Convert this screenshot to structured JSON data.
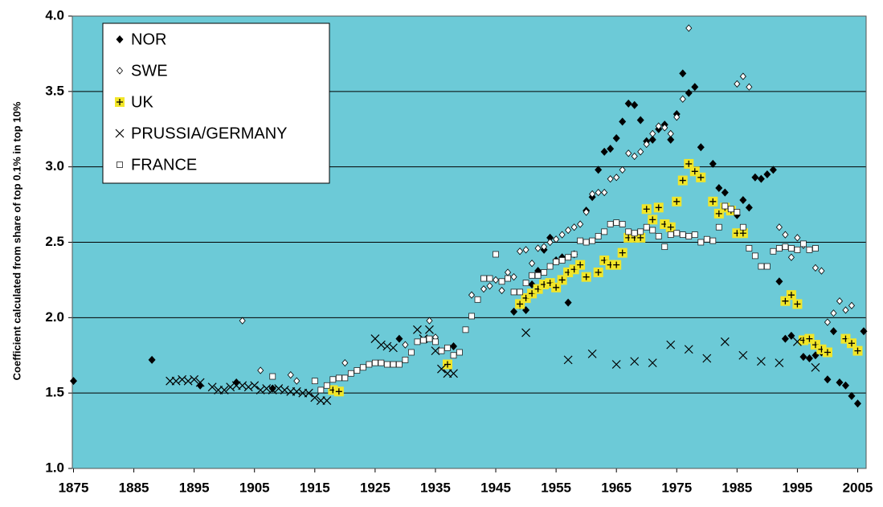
{
  "chart_data": {
    "type": "scatter",
    "ylabel": "Coefficient calculated from share of top 0.1% in top 10%",
    "xlim": [
      1874.8,
      2006.4
    ],
    "ylim": [
      1.0,
      4.0
    ],
    "xticks": [
      1875,
      1885,
      1895,
      1905,
      1915,
      1925,
      1935,
      1945,
      1955,
      1965,
      1975,
      1985,
      1995,
      2005
    ],
    "yticks": [
      {
        "value": 1,
        "label": "1.0"
      },
      {
        "value": 1.5,
        "label": "1.5"
      },
      {
        "value": 2,
        "label": "2.0"
      },
      {
        "value": 2.5,
        "label": "2.5"
      },
      {
        "value": 3,
        "label": "3.0"
      },
      {
        "value": 3.5,
        "label": "3.5"
      },
      {
        "value": 4,
        "label": "4.0"
      }
    ],
    "grid": true,
    "legend": "upper-left",
    "background": "#6ccad7",
    "series": [
      {
        "name": "NOR",
        "marker": "diamond",
        "color": "#000000",
        "x": [
          1875,
          1888,
          1896,
          1902,
          1908,
          1929,
          1938,
          1948,
          1949,
          1950,
          1951,
          1952,
          1953,
          1954,
          1955,
          1956,
          1957,
          1958,
          1960,
          1961,
          1962,
          1963,
          1964,
          1965,
          1966,
          1967,
          1968,
          1969,
          1970,
          1971,
          1972,
          1973,
          1974,
          1975,
          1976,
          1977,
          1978,
          1979,
          1981,
          1982,
          1983,
          1985,
          1986,
          1987,
          1988,
          1989,
          1990,
          1991,
          1992,
          1993,
          1994,
          1996,
          1997,
          1998,
          1999,
          2000,
          2001,
          2002,
          2003,
          2004,
          2005,
          2006
        ],
        "values": [
          1.58,
          1.72,
          1.55,
          1.57,
          1.53,
          1.86,
          1.81,
          2.04,
          2.08,
          2.05,
          2.22,
          2.31,
          2.45,
          2.53,
          2.38,
          2.4,
          2.1,
          2.42,
          2.71,
          2.8,
          2.98,
          3.1,
          3.12,
          3.19,
          3.3,
          3.42,
          3.41,
          3.31,
          3.17,
          3.18,
          3.25,
          3.28,
          3.18,
          3.35,
          3.62,
          3.49,
          3.53,
          3.13,
          3.02,
          2.86,
          2.83,
          2.68,
          2.78,
          2.73,
          2.93,
          2.92,
          2.95,
          2.98,
          2.24,
          1.86,
          1.88,
          1.74,
          1.73,
          1.75,
          1.77,
          1.59,
          1.91,
          1.57,
          1.55,
          1.48,
          1.43,
          1.91
        ]
      },
      {
        "name": "SWE",
        "marker": "open-diamond",
        "color": "#000000",
        "x": [
          1903,
          1906,
          1911,
          1912,
          1920,
          1930,
          1934,
          1935,
          1941,
          1943,
          1944,
          1945,
          1946,
          1947,
          1948,
          1949,
          1950,
          1951,
          1952,
          1953,
          1954,
          1955,
          1956,
          1957,
          1958,
          1959,
          1960,
          1961,
          1962,
          1963,
          1964,
          1965,
          1966,
          1967,
          1968,
          1969,
          1970,
          1971,
          1972,
          1973,
          1974,
          1975,
          1976,
          1977,
          1985,
          1986,
          1987,
          1992,
          1993,
          1994,
          1995,
          1996,
          1998,
          1999,
          2000,
          2001,
          2002,
          2003,
          2004
        ],
        "values": [
          1.98,
          1.65,
          1.62,
          1.58,
          1.7,
          1.82,
          1.98,
          1.87,
          2.15,
          2.19,
          2.21,
          2.25,
          2.18,
          2.3,
          2.27,
          2.44,
          2.45,
          2.36,
          2.46,
          2.47,
          2.5,
          2.52,
          2.55,
          2.58,
          2.6,
          2.62,
          2.7,
          2.82,
          2.83,
          2.83,
          2.92,
          2.93,
          2.98,
          3.09,
          3.07,
          3.1,
          3.15,
          3.22,
          3.27,
          3.26,
          3.22,
          3.33,
          3.45,
          3.92,
          3.55,
          3.6,
          3.53,
          2.6,
          2.55,
          2.4,
          2.53,
          2.48,
          2.33,
          2.31,
          1.97,
          2.03,
          2.11,
          2.05,
          2.08
        ]
      },
      {
        "name": "UK",
        "marker": "plus-square",
        "color": "#f2e628",
        "x": [
          1918,
          1919,
          1937,
          1949,
          1950,
          1951,
          1952,
          1953,
          1954,
          1955,
          1956,
          1957,
          1958,
          1959,
          1960,
          1962,
          1963,
          1964,
          1965,
          1966,
          1967,
          1968,
          1969,
          1970,
          1971,
          1972,
          1973,
          1974,
          1975,
          1976,
          1977,
          1978,
          1979,
          1981,
          1982,
          1983,
          1984,
          1985,
          1986,
          1993,
          1994,
          1995,
          1996,
          1997,
          1998,
          1999,
          2000,
          2003,
          2004,
          2005
        ],
        "values": [
          1.52,
          1.51,
          1.69,
          2.09,
          2.13,
          2.16,
          2.19,
          2.22,
          2.23,
          2.2,
          2.25,
          2.3,
          2.32,
          2.35,
          2.27,
          2.3,
          2.38,
          2.35,
          2.35,
          2.43,
          2.53,
          2.53,
          2.53,
          2.72,
          2.65,
          2.73,
          2.62,
          2.6,
          2.77,
          2.91,
          3.02,
          2.97,
          2.93,
          2.77,
          2.69,
          2.73,
          2.71,
          2.56,
          2.56,
          2.11,
          2.15,
          2.09,
          1.85,
          1.86,
          1.82,
          1.79,
          1.77,
          1.86,
          1.83,
          1.78
        ]
      },
      {
        "name": "PRUSSIA/GERMANY",
        "marker": "cross",
        "color": "#000000",
        "x": [
          1891,
          1892,
          1893,
          1894,
          1895,
          1896,
          1898,
          1899,
          1900,
          1901,
          1902,
          1903,
          1904,
          1905,
          1906,
          1907,
          1908,
          1909,
          1910,
          1911,
          1912,
          1913,
          1914,
          1915,
          1916,
          1917,
          1925,
          1926,
          1927,
          1928,
          1932,
          1933,
          1934,
          1935,
          1936,
          1937,
          1938,
          1950,
          1957,
          1961,
          1965,
          1968,
          1971,
          1974,
          1977,
          1980,
          1983,
          1986,
          1989,
          1992,
          1995,
          1998
        ],
        "values": [
          1.58,
          1.58,
          1.59,
          1.58,
          1.59,
          1.57,
          1.54,
          1.52,
          1.52,
          1.54,
          1.55,
          1.55,
          1.54,
          1.55,
          1.52,
          1.53,
          1.52,
          1.53,
          1.52,
          1.51,
          1.51,
          1.5,
          1.5,
          1.47,
          1.45,
          1.45,
          1.86,
          1.82,
          1.81,
          1.8,
          1.92,
          1.86,
          1.92,
          1.78,
          1.66,
          1.63,
          1.63,
          1.9,
          1.72,
          1.76,
          1.69,
          1.71,
          1.7,
          1.82,
          1.79,
          1.73,
          1.84,
          1.75,
          1.71,
          1.7,
          1.84,
          1.67
        ]
      },
      {
        "name": "FRANCE",
        "marker": "open-square",
        "color": "#000000",
        "x": [
          1908,
          1915,
          1916,
          1917,
          1918,
          1919,
          1920,
          1921,
          1922,
          1923,
          1924,
          1925,
          1926,
          1927,
          1928,
          1929,
          1930,
          1931,
          1932,
          1933,
          1934,
          1935,
          1936,
          1937,
          1938,
          1939,
          1940,
          1941,
          1942,
          1943,
          1944,
          1945,
          1946,
          1947,
          1948,
          1949,
          1950,
          1951,
          1952,
          1953,
          1954,
          1955,
          1956,
          1957,
          1958,
          1959,
          1960,
          1961,
          1962,
          1963,
          1964,
          1965,
          1966,
          1967,
          1968,
          1969,
          1970,
          1971,
          1972,
          1973,
          1974,
          1975,
          1976,
          1977,
          1978,
          1979,
          1980,
          1981,
          1982,
          1983,
          1984,
          1985,
          1986,
          1987,
          1988,
          1989,
          1990,
          1991,
          1992,
          1993,
          1994,
          1995,
          1996,
          1997,
          1998
        ],
        "values": [
          1.61,
          1.58,
          1.52,
          1.55,
          1.59,
          1.6,
          1.6,
          1.63,
          1.65,
          1.67,
          1.69,
          1.7,
          1.7,
          1.69,
          1.69,
          1.69,
          1.72,
          1.77,
          1.84,
          1.85,
          1.86,
          1.84,
          1.78,
          1.8,
          1.75,
          1.77,
          1.92,
          2.01,
          2.12,
          2.26,
          2.26,
          2.42,
          2.24,
          2.26,
          2.17,
          2.17,
          2.23,
          2.28,
          2.28,
          2.3,
          2.34,
          2.37,
          2.38,
          2.4,
          2.42,
          2.51,
          2.5,
          2.51,
          2.54,
          2.57,
          2.62,
          2.63,
          2.62,
          2.57,
          2.56,
          2.57,
          2.6,
          2.58,
          2.54,
          2.47,
          2.55,
          2.56,
          2.55,
          2.54,
          2.55,
          2.5,
          2.52,
          2.51,
          2.6,
          2.74,
          2.72,
          2.7,
          2.6,
          2.46,
          2.41,
          2.34,
          2.34,
          2.44,
          2.46,
          2.47,
          2.46,
          2.45,
          2.49,
          2.45,
          2.46
        ]
      }
    ]
  }
}
